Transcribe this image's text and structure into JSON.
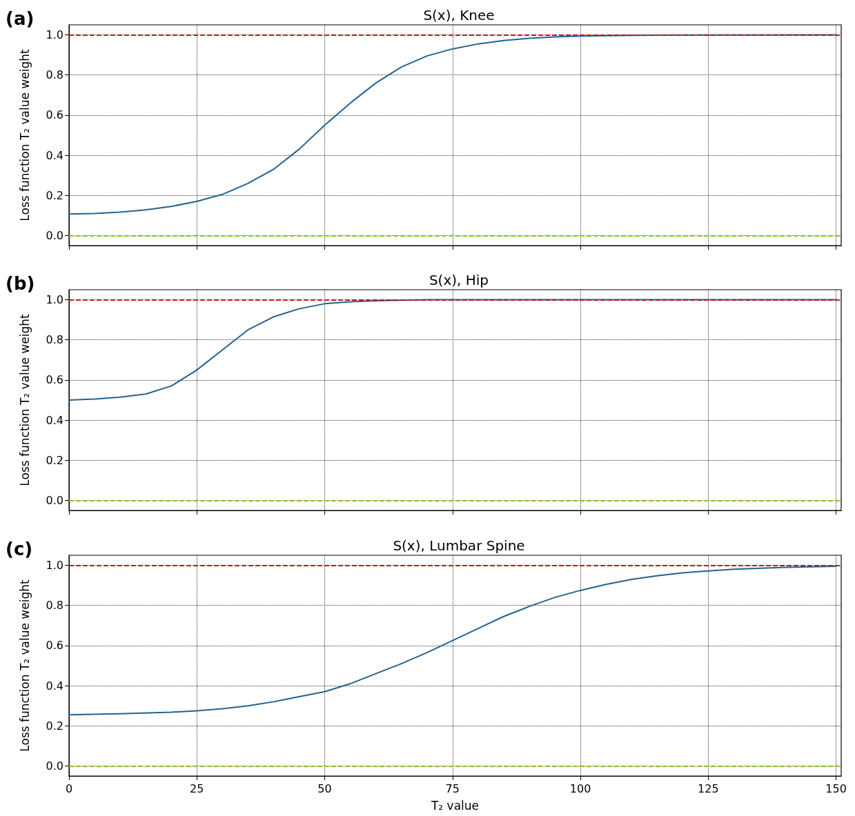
{
  "chart_data": [
    {
      "type": "line",
      "title": "S(x), Knee",
      "ylabel": "Loss function T₂ value weight",
      "annotations": [
        "(a)"
      ],
      "tick_labels": "y",
      "grid": true,
      "xlim": [
        0,
        151
      ],
      "ylim": [
        -0.05,
        1.05
      ],
      "xticks": [
        0,
        25,
        50,
        75,
        100,
        125,
        150
      ],
      "yticks": [
        {
          "value": 0,
          "label": "0.0"
        },
        {
          "value": 0.2,
          "label": "0.2"
        },
        {
          "value": 0.4,
          "label": "0.4"
        },
        {
          "value": 0.6,
          "label": "0.6"
        },
        {
          "value": 0.8,
          "label": "0.8"
        },
        {
          "value": 1,
          "label": "1.0"
        }
      ],
      "x": [
        0,
        5,
        10,
        15,
        20,
        25,
        30,
        35,
        40,
        45,
        50,
        55,
        60,
        65,
        70,
        75,
        80,
        85,
        90,
        95,
        100,
        110,
        120,
        150
      ],
      "series": [
        {
          "color": "#23608f",
          "values": [
            0.107,
            0.11,
            0.117,
            0.128,
            0.145,
            0.17,
            0.205,
            0.26,
            0.33,
            0.43,
            0.55,
            0.66,
            0.76,
            0.84,
            0.895,
            0.93,
            0.955,
            0.972,
            0.983,
            0.99,
            0.994,
            0.998,
            0.999,
            1.0
          ]
        }
      ],
      "ref_lines": [
        {
          "axis": "y",
          "value": 1,
          "color": "#c0141a",
          "line_style": "dashed"
        },
        {
          "axis": "y",
          "value": 0,
          "color": "#7fc31c",
          "line_style": "dashed"
        }
      ]
    },
    {
      "type": "line",
      "title": "S(x), Hip",
      "ylabel": "Loss function T₂ value weight",
      "annotations": [
        "(b)"
      ],
      "tick_labels": "y",
      "grid": true,
      "xlim": [
        0,
        151
      ],
      "ylim": [
        -0.05,
        1.05
      ],
      "xticks": [
        0,
        25,
        50,
        75,
        100,
        125,
        150
      ],
      "yticks": [
        {
          "value": 0,
          "label": "0.0"
        },
        {
          "value": 0.2,
          "label": "0.2"
        },
        {
          "value": 0.4,
          "label": "0.4"
        },
        {
          "value": 0.6,
          "label": "0.6"
        },
        {
          "value": 0.8,
          "label": "0.8"
        },
        {
          "value": 1,
          "label": "1.0"
        }
      ],
      "x": [
        0,
        5,
        10,
        15,
        20,
        25,
        30,
        35,
        40,
        45,
        50,
        55,
        60,
        70,
        150
      ],
      "series": [
        {
          "color": "#23608f",
          "values": [
            0.5,
            0.505,
            0.515,
            0.53,
            0.57,
            0.65,
            0.75,
            0.85,
            0.915,
            0.955,
            0.98,
            0.99,
            0.995,
            1.0,
            1.0
          ]
        }
      ],
      "ref_lines": [
        {
          "axis": "y",
          "value": 1,
          "color": "#c0141a",
          "line_style": "dashed"
        },
        {
          "axis": "y",
          "value": 0,
          "color": "#7fc31c",
          "line_style": "dashed"
        }
      ]
    },
    {
      "type": "line",
      "title": "S(x), Lumbar Spine",
      "xlabel": "T₂ value",
      "ylabel": "Loss function T₂ value weight",
      "annotations": [
        "(c)"
      ],
      "grid": true,
      "xlim": [
        0,
        151
      ],
      "ylim": [
        -0.05,
        1.05
      ],
      "xticks": [
        0,
        25,
        50,
        75,
        100,
        125,
        150
      ],
      "yticks": [
        {
          "value": 0,
          "label": "0.0"
        },
        {
          "value": 0.2,
          "label": "0.2"
        },
        {
          "value": 0.4,
          "label": "0.4"
        },
        {
          "value": 0.6,
          "label": "0.6"
        },
        {
          "value": 0.8,
          "label": "0.8"
        },
        {
          "value": 1,
          "label": "1.0"
        }
      ],
      "x": [
        0,
        10,
        20,
        25,
        30,
        35,
        40,
        45,
        50,
        55,
        60,
        65,
        70,
        75,
        80,
        85,
        90,
        95,
        100,
        105,
        110,
        115,
        120,
        125,
        130,
        140,
        150
      ],
      "series": [
        {
          "color": "#23608f",
          "values": [
            0.255,
            0.26,
            0.268,
            0.275,
            0.285,
            0.3,
            0.32,
            0.345,
            0.37,
            0.41,
            0.46,
            0.51,
            0.565,
            0.625,
            0.685,
            0.745,
            0.795,
            0.84,
            0.875,
            0.905,
            0.93,
            0.948,
            0.962,
            0.972,
            0.98,
            0.99,
            0.995
          ]
        }
      ],
      "ref_lines": [
        {
          "axis": "y",
          "value": 1,
          "color": "#c0141a",
          "line_style": "dashed"
        },
        {
          "axis": "y",
          "value": 0,
          "color": "#7fc31c",
          "line_style": "dashed"
        }
      ]
    }
  ]
}
